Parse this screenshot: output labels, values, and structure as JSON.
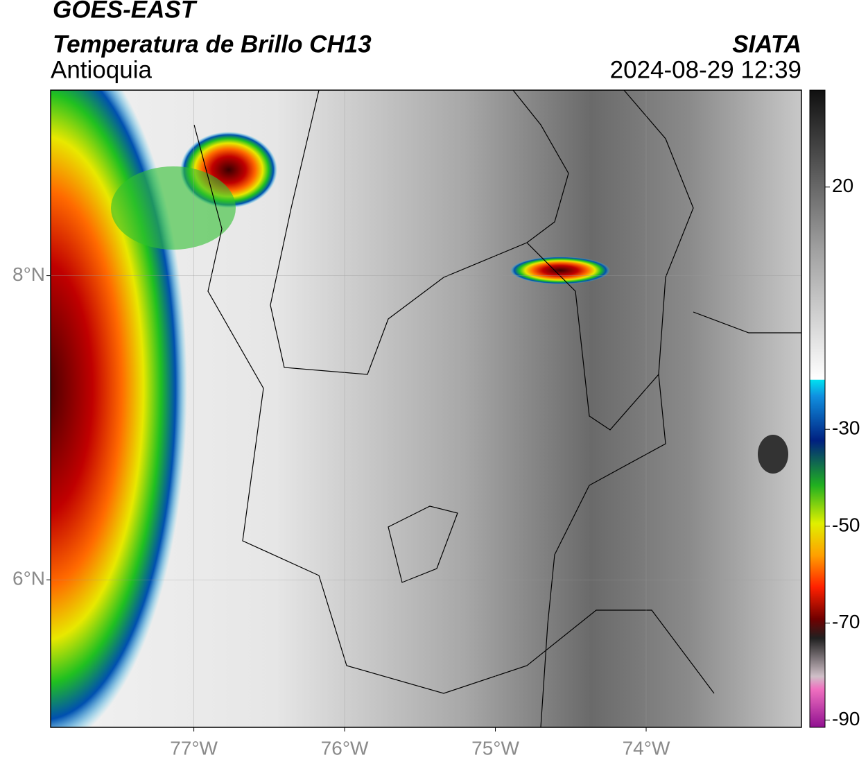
{
  "header": {
    "satellite": "GOES-EAST",
    "product": "Temperatura de Brillo CH13",
    "region": "Antioquia",
    "agency": "SIATA",
    "timestamp": "2024-08-29 12:39"
  },
  "map": {
    "xlim": [
      -77.95,
      -72.97
    ],
    "ylim": [
      5.03,
      9.22
    ],
    "xticks": [
      {
        "value": -77,
        "label": "77°W"
      },
      {
        "value": -76,
        "label": "76°W"
      },
      {
        "value": -75,
        "label": "75°W"
      },
      {
        "value": -74,
        "label": "74°W"
      }
    ],
    "yticks": [
      {
        "value": 8,
        "label": "8°N"
      },
      {
        "value": 6,
        "label": "6°N"
      }
    ]
  },
  "colorbar": {
    "lim": [
      -91.5,
      40
    ],
    "ticks": [
      20,
      -30,
      -50,
      -70,
      -90
    ]
  }
}
